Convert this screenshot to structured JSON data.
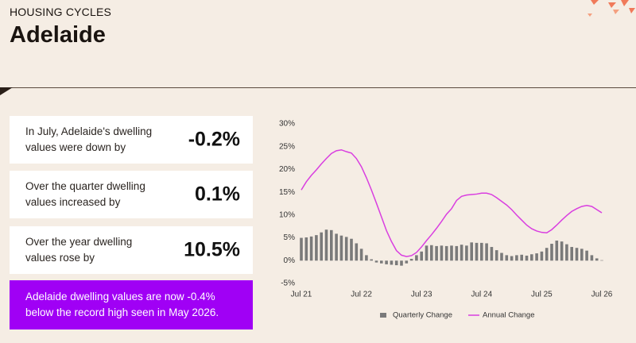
{
  "header": {
    "kicker": "HOUSING CYCLES",
    "title": "Adelaide"
  },
  "cards": [
    {
      "text": "In July, Adelaide's dwelling values were down by",
      "value": "-0.2%"
    },
    {
      "text": "Over the quarter dwelling values increased by",
      "value": "0.1%"
    },
    {
      "text": "Over the year dwelling values rose by",
      "value": "10.5%"
    }
  ],
  "note": "Adelaide dwelling values are now -0.4% below the record high seen in May 2026.",
  "chart_data": {
    "type": "bar-line",
    "categories": [
      "Jul 21",
      null,
      null,
      null,
      null,
      null,
      null,
      null,
      null,
      null,
      null,
      null,
      "Jul 22",
      null,
      null,
      null,
      null,
      null,
      null,
      null,
      null,
      null,
      null,
      null,
      "Jul 23",
      null,
      null,
      null,
      null,
      null,
      null,
      null,
      null,
      null,
      null,
      null,
      "Jul 24",
      null,
      null,
      null,
      null,
      null,
      null,
      null,
      null,
      null,
      null,
      null,
      "Jul 25",
      null,
      null,
      null,
      null,
      null,
      null,
      null,
      null,
      null,
      null,
      null,
      "Jul 26"
    ],
    "series": [
      {
        "name": "Quarterly Change",
        "type": "bar",
        "color": "#7a7a7a",
        "values": [
          5.0,
          5.1,
          5.3,
          5.6,
          6.2,
          6.8,
          6.7,
          5.9,
          5.5,
          5.2,
          4.8,
          3.8,
          2.6,
          1.2,
          0.3,
          -0.4,
          -0.6,
          -0.8,
          -0.9,
          -1.0,
          -1.1,
          -0.6,
          0.4,
          1.2,
          2.0,
          3.3,
          3.4,
          3.2,
          3.3,
          3.2,
          3.3,
          3.2,
          3.5,
          3.3,
          4.0,
          3.9,
          3.9,
          3.8,
          3.0,
          2.3,
          1.7,
          1.2,
          1.0,
          1.2,
          1.3,
          1.1,
          1.4,
          1.6,
          2.0,
          2.8,
          3.7,
          4.4,
          4.2,
          3.6,
          3.0,
          2.8,
          2.6,
          2.2,
          1.2,
          0.5,
          0.1
        ]
      },
      {
        "name": "Annual Change",
        "type": "line",
        "color": "#d93ee0",
        "values": [
          15.5,
          17.3,
          18.7,
          19.9,
          21.2,
          22.4,
          23.5,
          24.1,
          24.3,
          23.9,
          23.6,
          22.4,
          20.6,
          18.2,
          15.5,
          12.6,
          9.6,
          6.6,
          4.2,
          2.2,
          1.2,
          0.9,
          1.1,
          1.8,
          3.0,
          4.4,
          5.7,
          7.1,
          8.6,
          10.2,
          11.4,
          13.2,
          14.1,
          14.4,
          14.5,
          14.6,
          14.8,
          14.8,
          14.5,
          13.8,
          13.0,
          12.2,
          11.2,
          10.0,
          8.9,
          7.8,
          7.0,
          6.5,
          6.2,
          6.1,
          6.8,
          7.8,
          8.9,
          9.9,
          10.8,
          11.4,
          11.9,
          12.1,
          11.9,
          11.2,
          10.5
        ]
      }
    ],
    "ylim": [
      -5,
      30
    ],
    "yticks": [
      {
        "value": 30,
        "label": "30%"
      },
      {
        "value": 25,
        "label": "25%"
      },
      {
        "value": 20,
        "label": "20%"
      },
      {
        "value": 15,
        "label": "15%"
      },
      {
        "value": 10,
        "label": "10%"
      },
      {
        "value": 5,
        "label": "5%"
      },
      {
        "value": 0,
        "label": "0%"
      },
      {
        "value": -5,
        "label": "-5%"
      }
    ],
    "grid": false,
    "legend": "bottom"
  }
}
